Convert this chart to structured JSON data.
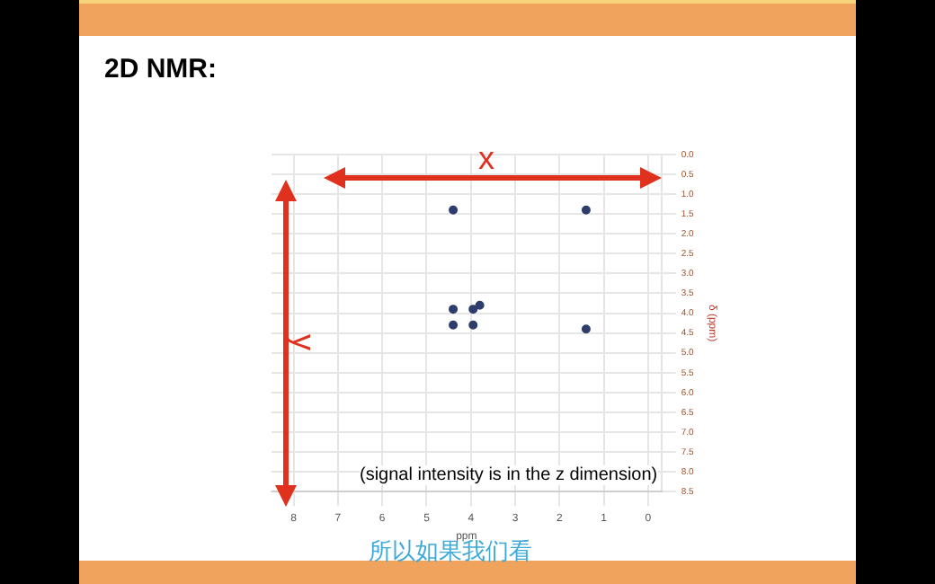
{
  "chart_data": {
    "type": "scatter",
    "title": "2D NMR:",
    "xlabel": "ppm",
    "ylabel": "δ (ppm)",
    "x": [
      4.4,
      1.4,
      4.4,
      4.4,
      3.95,
      3.95,
      3.8,
      1.4
    ],
    "series": [
      {
        "color": "#2e3d6b",
        "values": [
          1.4,
          1.4,
          3.9,
          4.3,
          3.9,
          4.3,
          3.8,
          4.4
        ]
      }
    ],
    "xlim": [
      8.5,
      -0.3
    ],
    "xticks": [
      8,
      7,
      6,
      5,
      4,
      3,
      2,
      1,
      0
    ],
    "ylim": [
      8.5,
      0
    ],
    "yticks": [
      {
        "value": 0,
        "label": "0.0"
      },
      {
        "value": 0.5,
        "label": "0.5"
      },
      {
        "value": 1,
        "label": "1.0"
      },
      {
        "value": 1.5,
        "label": "1.5"
      },
      {
        "value": 2,
        "label": "2.0"
      },
      {
        "value": 2.5,
        "label": "2.5"
      },
      {
        "value": 3,
        "label": "3.0"
      },
      {
        "value": 3.5,
        "label": "3.5"
      },
      {
        "value": 4,
        "label": "4.0"
      },
      {
        "value": 4.5,
        "label": "4.5"
      },
      {
        "value": 5,
        "label": "5.0"
      },
      {
        "value": 5.5,
        "label": "5.5"
      },
      {
        "value": 6,
        "label": "6.0"
      },
      {
        "value": 6.5,
        "label": "6.5"
      },
      {
        "value": 7,
        "label": "7.0"
      },
      {
        "value": 7.5,
        "label": "7.5"
      },
      {
        "value": 8,
        "label": "8.0"
      },
      {
        "value": 8.5,
        "label": "8.5"
      }
    ],
    "grid": true,
    "legend": false,
    "marker": "circle",
    "annotations": [
      "x",
      "y",
      "(signal intensity is in the z dimension)",
      "所以如果我们看"
    ]
  }
}
